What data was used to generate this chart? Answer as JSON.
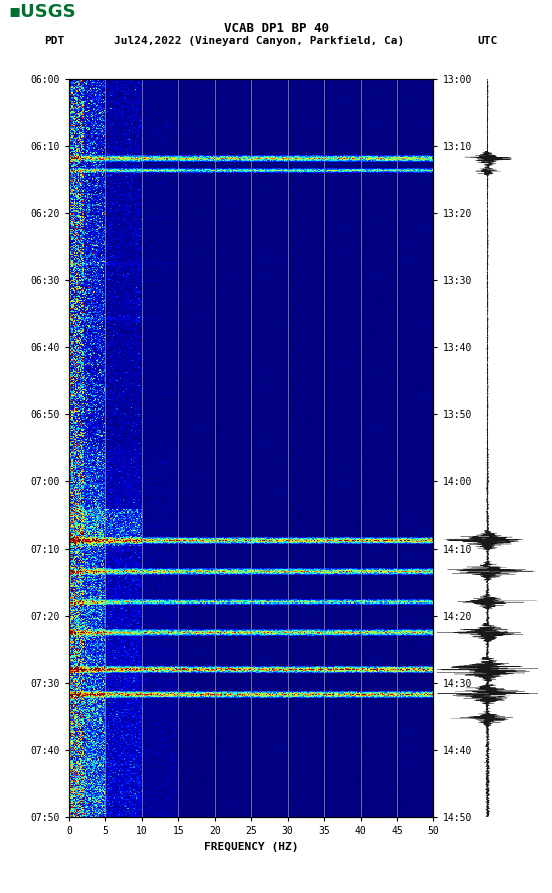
{
  "title_line1": "VCAB DP1 BP 40",
  "title_line2_left": "PDT",
  "title_line2_mid": "Jul24,2022 (Vineyard Canyon, Parkfield, Ca)",
  "title_line2_right": "UTC",
  "xlabel": "FREQUENCY (HZ)",
  "freq_ticks": [
    0,
    5,
    10,
    15,
    20,
    25,
    30,
    35,
    40,
    45,
    50
  ],
  "time_left_labels": [
    "06:00",
    "06:10",
    "06:20",
    "06:30",
    "06:40",
    "06:50",
    "07:00",
    "07:10",
    "07:20",
    "07:30",
    "07:40",
    "07:50"
  ],
  "time_right_labels": [
    "13:00",
    "13:10",
    "13:20",
    "13:30",
    "13:40",
    "13:50",
    "14:00",
    "14:10",
    "14:20",
    "14:30",
    "14:40",
    "14:50"
  ],
  "background_color": "#ffffff",
  "grid_color": "#808080",
  "usgs_color": "#007030",
  "fig_width": 5.52,
  "fig_height": 8.93,
  "random_seed": 42
}
